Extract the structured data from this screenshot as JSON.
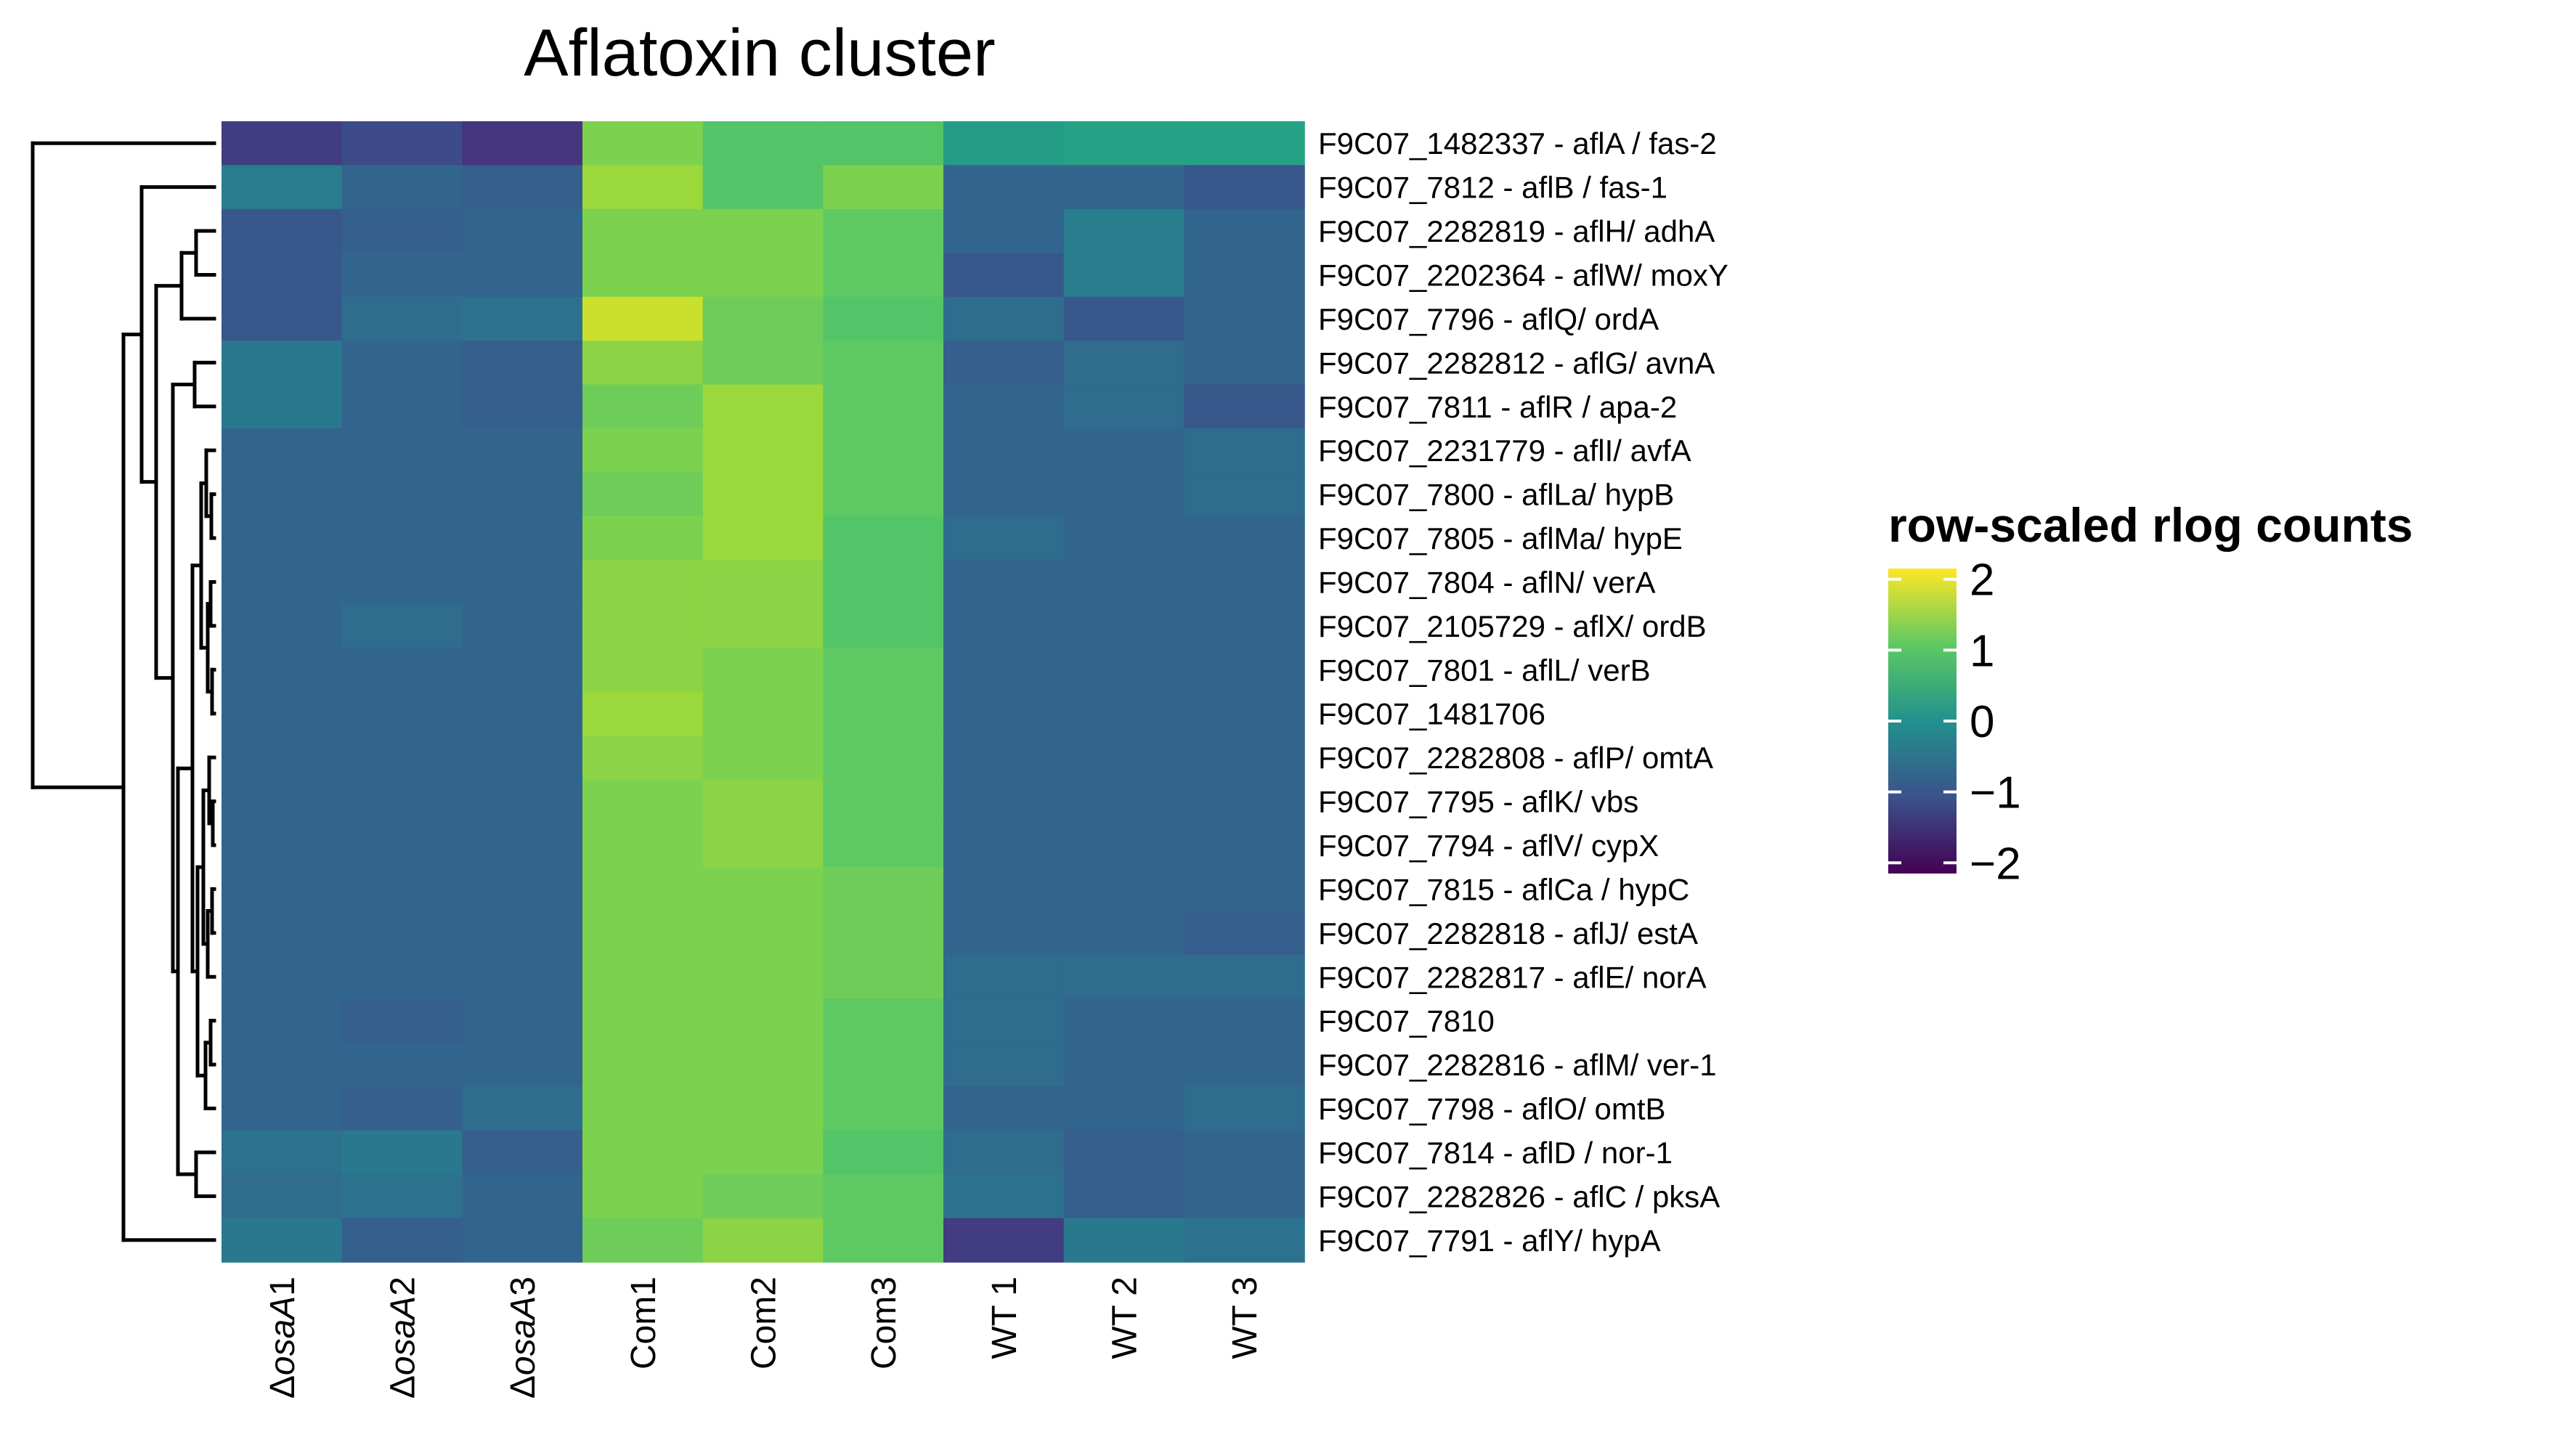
{
  "chart_data": {
    "type": "heatmap",
    "title": "Aflatoxin cluster",
    "colorscale": "viridis",
    "color_range": [
      -2,
      2
    ],
    "legend": {
      "title": "row-scaled rlog counts",
      "placement": "right",
      "ticks": [
        {
          "value": 2,
          "label": "2"
        },
        {
          "value": 1,
          "label": "1"
        },
        {
          "value": 0,
          "label": "0"
        },
        {
          "value": -1,
          "label": "−1"
        },
        {
          "value": -2,
          "label": "−2"
        }
      ]
    },
    "columns": [
      {
        "prefix": "Δ",
        "italic": "osaA",
        "suffix": "1"
      },
      {
        "prefix": "Δ",
        "italic": "osaA",
        "suffix": "2"
      },
      {
        "prefix": "Δ",
        "italic": "osaA",
        "suffix": "3"
      },
      {
        "prefix": "Com1",
        "italic": "",
        "suffix": ""
      },
      {
        "prefix": "Com2",
        "italic": "",
        "suffix": ""
      },
      {
        "prefix": "Com3",
        "italic": "",
        "suffix": ""
      },
      {
        "prefix": "WT 1",
        "italic": "",
        "suffix": ""
      },
      {
        "prefix": "WT 2",
        "italic": "",
        "suffix": ""
      },
      {
        "prefix": "WT 3",
        "italic": "",
        "suffix": ""
      }
    ],
    "rows": [
      "F9C07_1482337 - aflA / fas-2",
      "F9C07_7812 - aflB / fas-1",
      "F9C07_2282819 - aflH/ adhA",
      "F9C07_2202364 - aflW/ moxY",
      "F9C07_7796 - aflQ/ ordA",
      "F9C07_2282812 - aflG/ avnA",
      "F9C07_7811 - aflR / apa-2",
      "F9C07_2231779 - aflI/ avfA",
      "F9C07_7800 - aflLa/ hypB",
      "F9C07_7805 - aflMa/ hypE",
      "F9C07_7804 - aflN/ verA",
      "F9C07_2105729 - aflX/ ordB",
      "F9C07_7801 - aflL/ verB",
      "F9C07_1481706",
      "F9C07_2282808 - aflP/ omtA",
      "F9C07_7795 - aflK/ vbs",
      "F9C07_7794 - aflV/ cypX",
      "F9C07_7815 - aflCa / hypC",
      "F9C07_2282818 - aflJ/ estA",
      "F9C07_2282817 - aflE/ norA",
      "F9C07_7810",
      "F9C07_2282816 - aflM/ ver-1",
      "F9C07_7798 - aflO/ omtB",
      "F9C07_7814 - aflD / nor-1",
      "F9C07_2282826 - aflC / pksA",
      "F9C07_7791 - aflY/ hypA"
    ],
    "values": [
      [
        -1.3,
        -1.1,
        -1.4,
        1.2,
        0.9,
        0.9,
        0.2,
        0.3,
        0.3
      ],
      [
        -0.3,
        -0.7,
        -0.8,
        1.4,
        0.9,
        1.2,
        -0.7,
        -0.7,
        -0.9
      ],
      [
        -0.9,
        -0.8,
        -0.7,
        1.2,
        1.2,
        1.0,
        -0.7,
        -0.3,
        -0.7
      ],
      [
        -0.9,
        -0.7,
        -0.7,
        1.2,
        1.2,
        1.0,
        -0.9,
        -0.3,
        -0.7
      ],
      [
        -0.9,
        -0.6,
        -0.5,
        1.7,
        1.1,
        0.9,
        -0.6,
        -0.9,
        -0.7
      ],
      [
        -0.4,
        -0.7,
        -0.8,
        1.3,
        1.1,
        1.0,
        -0.8,
        -0.6,
        -0.7
      ],
      [
        -0.4,
        -0.7,
        -0.8,
        1.1,
        1.4,
        1.0,
        -0.7,
        -0.6,
        -0.9
      ],
      [
        -0.7,
        -0.7,
        -0.7,
        1.2,
        1.4,
        1.0,
        -0.7,
        -0.7,
        -0.6
      ],
      [
        -0.7,
        -0.7,
        -0.7,
        1.1,
        1.4,
        1.0,
        -0.7,
        -0.7,
        -0.6
      ],
      [
        -0.7,
        -0.7,
        -0.7,
        1.2,
        1.4,
        0.9,
        -0.6,
        -0.7,
        -0.7
      ],
      [
        -0.7,
        -0.7,
        -0.7,
        1.3,
        1.3,
        0.9,
        -0.7,
        -0.7,
        -0.7
      ],
      [
        -0.7,
        -0.6,
        -0.7,
        1.3,
        1.3,
        0.9,
        -0.7,
        -0.7,
        -0.7
      ],
      [
        -0.7,
        -0.7,
        -0.7,
        1.3,
        1.2,
        1.0,
        -0.7,
        -0.7,
        -0.7
      ],
      [
        -0.7,
        -0.7,
        -0.7,
        1.4,
        1.2,
        1.0,
        -0.7,
        -0.7,
        -0.7
      ],
      [
        -0.7,
        -0.7,
        -0.7,
        1.3,
        1.2,
        1.0,
        -0.7,
        -0.7,
        -0.7
      ],
      [
        -0.7,
        -0.7,
        -0.7,
        1.2,
        1.3,
        1.0,
        -0.7,
        -0.7,
        -0.7
      ],
      [
        -0.7,
        -0.7,
        -0.7,
        1.2,
        1.3,
        1.0,
        -0.7,
        -0.7,
        -0.7
      ],
      [
        -0.7,
        -0.7,
        -0.7,
        1.2,
        1.2,
        1.1,
        -0.7,
        -0.7,
        -0.7
      ],
      [
        -0.7,
        -0.7,
        -0.7,
        1.2,
        1.2,
        1.1,
        -0.7,
        -0.7,
        -0.8
      ],
      [
        -0.7,
        -0.7,
        -0.7,
        1.2,
        1.2,
        1.1,
        -0.6,
        -0.6,
        -0.6
      ],
      [
        -0.7,
        -0.8,
        -0.7,
        1.2,
        1.2,
        1.0,
        -0.6,
        -0.7,
        -0.7
      ],
      [
        -0.7,
        -0.7,
        -0.7,
        1.2,
        1.2,
        1.0,
        -0.6,
        -0.7,
        -0.7
      ],
      [
        -0.7,
        -0.8,
        -0.6,
        1.2,
        1.2,
        1.0,
        -0.7,
        -0.7,
        -0.6
      ],
      [
        -0.5,
        -0.4,
        -0.8,
        1.2,
        1.2,
        0.9,
        -0.6,
        -0.8,
        -0.7
      ],
      [
        -0.6,
        -0.5,
        -0.7,
        1.2,
        1.1,
        1.0,
        -0.5,
        -0.8,
        -0.7
      ],
      [
        -0.4,
        -0.8,
        -0.7,
        1.1,
        1.3,
        1.0,
        -1.3,
        -0.4,
        -0.5
      ]
    ]
  }
}
